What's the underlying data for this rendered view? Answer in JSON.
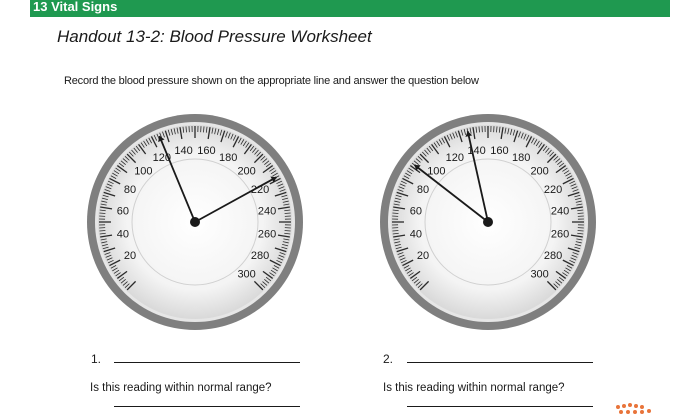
{
  "banner": {
    "chapter_title": "13 Vital Signs"
  },
  "handout": {
    "title": "Handout 13-2: Blood Pressure Worksheet"
  },
  "instructions": "Record the blood pressure shown on the appropriate line and answer the question below",
  "colors": {
    "banner": "#1f9950",
    "gauge_rim": "#7f7f7f",
    "needle": "#1a1a1a",
    "logo": "#e8743b"
  },
  "gauges": [
    {
      "number": "1.",
      "question": "Is this reading within normal range?",
      "scale_labels": [
        "20",
        "40",
        "60",
        "80",
        "100",
        "120",
        "140",
        "160",
        "180",
        "200",
        "220",
        "240",
        "260",
        "280",
        "300"
      ],
      "needles_mmHg": [
        125,
        218
      ]
    },
    {
      "number": "2.",
      "question": "Is this reading within normal range?",
      "scale_labels": [
        "20",
        "40",
        "60",
        "80",
        "100",
        "120",
        "140",
        "160",
        "180",
        "200",
        "220",
        "240",
        "260",
        "280",
        "300"
      ],
      "needles_mmHg": [
        92,
        136
      ]
    }
  ]
}
